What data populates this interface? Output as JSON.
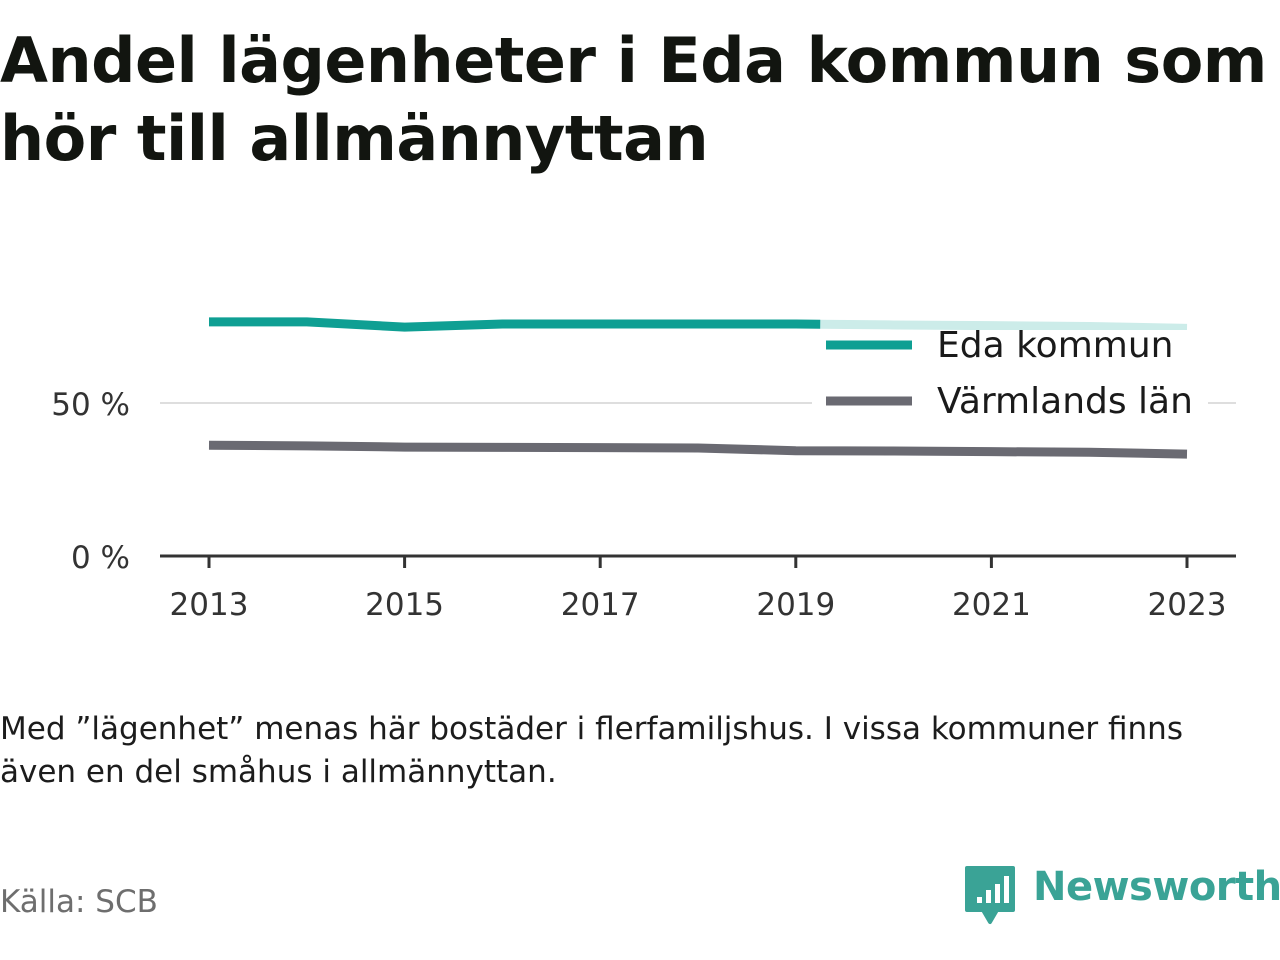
{
  "title": "Andel lägenheter i Eda kommun som hör till allmännyttan",
  "note": "Med ”lägenhet” menas här bostäder i flerfamiljshus. I vissa kommuner finns även en del småhus i allmännyttan.",
  "source": "Källa: SCB",
  "brand": {
    "name": "Newsworthy",
    "icon": "newsworthy-logo-icon",
    "color": "#3aa396"
  },
  "chart_data": {
    "type": "line",
    "x": [
      2013,
      2014,
      2015,
      2016,
      2017,
      2018,
      2019,
      2020,
      2021,
      2022,
      2023
    ],
    "xticks": [
      2013,
      2015,
      2017,
      2019,
      2021,
      2023
    ],
    "xtick_labels": [
      "2013",
      "2015",
      "2017",
      "2019",
      "2021",
      "2023"
    ],
    "xlim": [
      2012.9,
      2023.1
    ],
    "ylim": [
      0,
      100
    ],
    "yticks": [
      0,
      50
    ],
    "ytick_labels": [
      "0 %",
      "50 %"
    ],
    "grid": true,
    "legend": "top-right",
    "series": [
      {
        "name": "Eda kommun",
        "color": "#0f9f93",
        "faded_color": "#ccece9",
        "faded_from": 2019.25,
        "values": [
          76.5,
          76.5,
          74.8,
          75.8,
          75.8,
          75.8,
          75.8,
          75.5,
          75.3,
          75.0,
          74.4
        ]
      },
      {
        "name": "Värmlands län",
        "color": "#6a6a72",
        "values": [
          36.2,
          36.0,
          35.6,
          35.5,
          35.4,
          35.3,
          34.4,
          34.3,
          34.1,
          33.9,
          33.3
        ]
      }
    ]
  }
}
